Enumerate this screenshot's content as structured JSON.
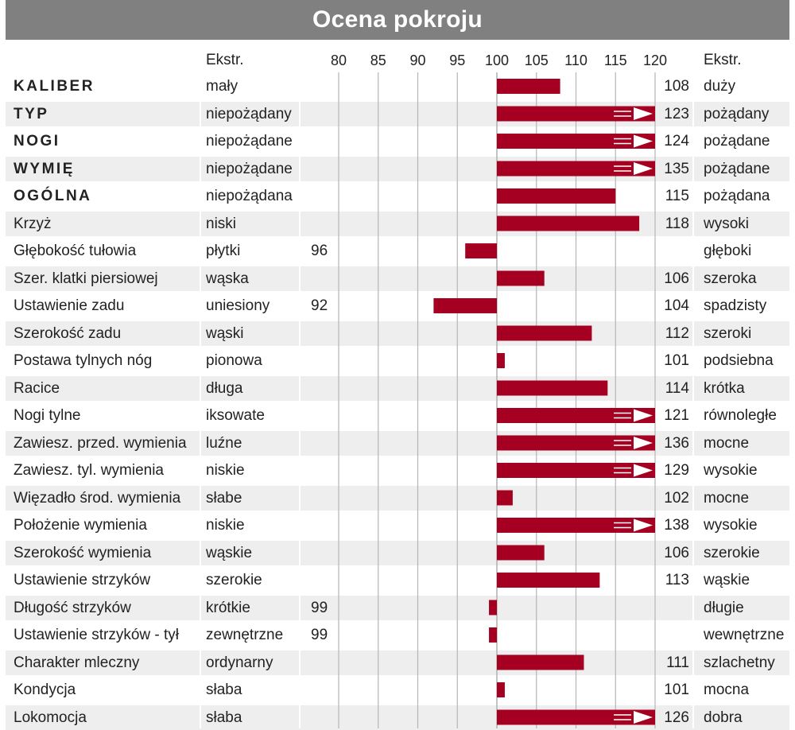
{
  "title": "Ocena pokroju",
  "header": {
    "low_label": "Ekstr.",
    "high_label": "Ekstr."
  },
  "chart_data": {
    "type": "bar",
    "orientation": "horizontal",
    "baseline": 100,
    "xlim": [
      75,
      120
    ],
    "ticks": [
      80,
      85,
      90,
      95,
      100,
      105,
      110,
      115,
      120
    ],
    "truncated_marker": "arrow",
    "colors": {
      "bar": "#a50021",
      "grid": "#b5b5b5",
      "header_bg": "#808080",
      "row_alt": "#eeeeee"
    },
    "rows": [
      {
        "name": "KALIBER",
        "bold": true,
        "low": "mały",
        "high": "duży",
        "value": 108,
        "label": "108",
        "side": "right"
      },
      {
        "name": "TYP",
        "bold": true,
        "low": "niepożądany",
        "high": "pożądany",
        "value": 123,
        "label": "123",
        "side": "right"
      },
      {
        "name": "NOGI",
        "bold": true,
        "low": "niepożądane",
        "high": "pożądane",
        "value": 124,
        "label": "124",
        "side": "right"
      },
      {
        "name": "WYMIĘ",
        "bold": true,
        "low": "niepożądane",
        "high": "pożądane",
        "value": 135,
        "label": "135",
        "side": "right"
      },
      {
        "name": "OGÓLNA",
        "bold": true,
        "low": "niepożądana",
        "high": "pożądana",
        "value": 115,
        "label": "115",
        "side": "right"
      },
      {
        "name": "Krzyż",
        "bold": false,
        "low": "niski",
        "high": "wysoki",
        "value": 118,
        "label": "118",
        "side": "right"
      },
      {
        "name": "Głębokość tułowia",
        "bold": false,
        "low": "płytki",
        "high": "głęboki",
        "value": 96,
        "label": "96",
        "side": "left"
      },
      {
        "name": "Szer. klatki piersiowej",
        "bold": false,
        "low": "wąska",
        "high": "szeroka",
        "value": 106,
        "label": "106",
        "side": "right"
      },
      {
        "name": "Ustawienie zadu",
        "bold": false,
        "low": "uniesiony",
        "high": "spadzisty",
        "value": 92,
        "label": "92",
        "side": "left",
        "extra_right_label": "104"
      },
      {
        "name": "Szerokość zadu",
        "bold": false,
        "low": "wąski",
        "high": "szeroki",
        "value": 112,
        "label": "112",
        "side": "right"
      },
      {
        "name": "Postawa tylnych nóg",
        "bold": false,
        "low": "pionowa",
        "high": "podsiebna",
        "value": 101,
        "label": "101",
        "side": "right"
      },
      {
        "name": "Racice",
        "bold": false,
        "low": "długa",
        "high": "krótka",
        "value": 114,
        "label": "114",
        "side": "right"
      },
      {
        "name": "Nogi tylne",
        "bold": false,
        "low": "iksowate",
        "high": "równoległe",
        "value": 121,
        "label": "121",
        "side": "right"
      },
      {
        "name": "Zawiesz. przed. wymienia",
        "bold": false,
        "low": "luźne",
        "high": "mocne",
        "value": 136,
        "label": "136",
        "side": "right"
      },
      {
        "name": "Zawiesz. tyl. wymienia",
        "bold": false,
        "low": "niskie",
        "high": "wysokie",
        "value": 129,
        "label": "129",
        "side": "right"
      },
      {
        "name": "Więzadło środ. wymienia",
        "bold": false,
        "low": "słabe",
        "high": "mocne",
        "value": 102,
        "label": "102",
        "side": "right"
      },
      {
        "name": "Położenie wymienia",
        "bold": false,
        "low": "niskie",
        "high": "wysokie",
        "value": 138,
        "label": "138",
        "side": "right"
      },
      {
        "name": "Szerokość wymienia",
        "bold": false,
        "low": "wąskie",
        "high": "szerokie",
        "value": 106,
        "label": "106",
        "side": "right"
      },
      {
        "name": "Ustawienie strzyków",
        "bold": false,
        "low": "szerokie",
        "high": "wąskie",
        "value": 113,
        "label": "113",
        "side": "right"
      },
      {
        "name": "Długość strzyków",
        "bold": false,
        "low": "krótkie",
        "high": "długie",
        "value": 99,
        "label": "99",
        "side": "left"
      },
      {
        "name": "Ustawienie strzyków - tył",
        "bold": false,
        "low": "zewnętrzne",
        "high": "wewnętrzne",
        "value": 99,
        "label": "99",
        "side": "left"
      },
      {
        "name": "Charakter mleczny",
        "bold": false,
        "low": "ordynarny",
        "high": "szlachetny",
        "value": 111,
        "label": "111",
        "side": "right"
      },
      {
        "name": "Kondycja",
        "bold": false,
        "low": "słaba",
        "high": "mocna",
        "value": 101,
        "label": "101",
        "side": "right"
      },
      {
        "name": "Lokomocja",
        "bold": false,
        "low": "słaba",
        "high": "dobra",
        "value": 126,
        "label": "126",
        "side": "right"
      }
    ]
  }
}
